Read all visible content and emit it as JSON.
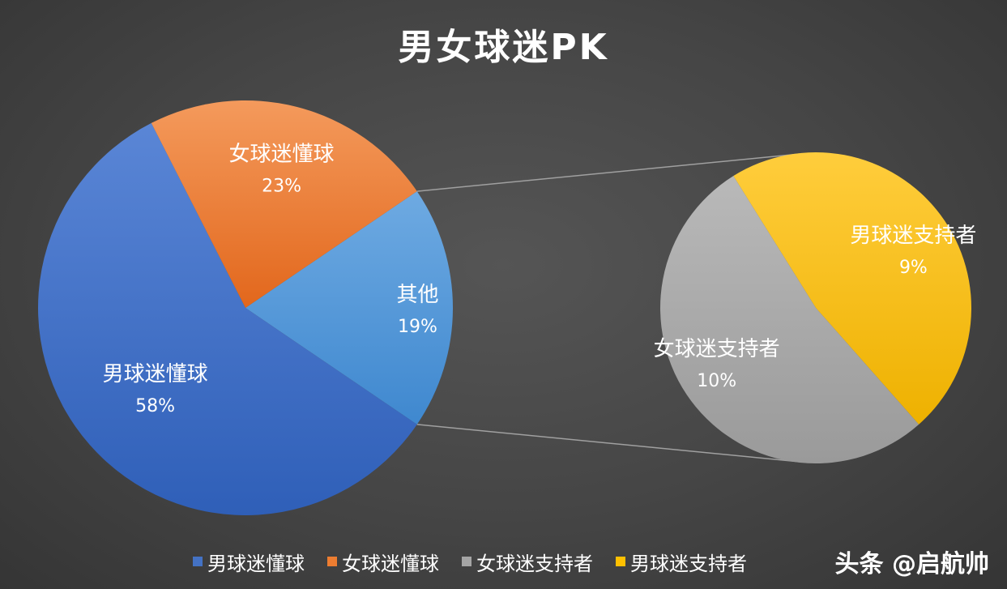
{
  "chart_data": {
    "type": "pie",
    "subtype": "pie-of-pie",
    "title": "男女球迷PK",
    "main_slices": [
      {
        "name": "男球迷懂球",
        "value": 58,
        "label": "58%",
        "color": "#4472c4"
      },
      {
        "name": "女球迷懂球",
        "value": 23,
        "label": "23%",
        "color": "#ed7d31"
      },
      {
        "name": "其他",
        "value": 19,
        "label": "19%",
        "color": "#5b9bd5"
      }
    ],
    "secondary_slices": [
      {
        "name": "女球迷支持者",
        "value": 10,
        "label": "10%",
        "color": "#a5a5a5"
      },
      {
        "name": "男球迷支持者",
        "value": 9,
        "label": "9%",
        "color": "#ffc000"
      }
    ],
    "legend": {
      "placement": "bottom",
      "entries": [
        {
          "name": "男球迷懂球",
          "color": "#4472c4"
        },
        {
          "name": "女球迷懂球",
          "color": "#ed7d31"
        },
        {
          "name": "女球迷支持者",
          "color": "#a5a5a5"
        },
        {
          "name": "男球迷支持者",
          "color": "#ffc000"
        }
      ]
    }
  },
  "watermark": "头条 @启航帅"
}
